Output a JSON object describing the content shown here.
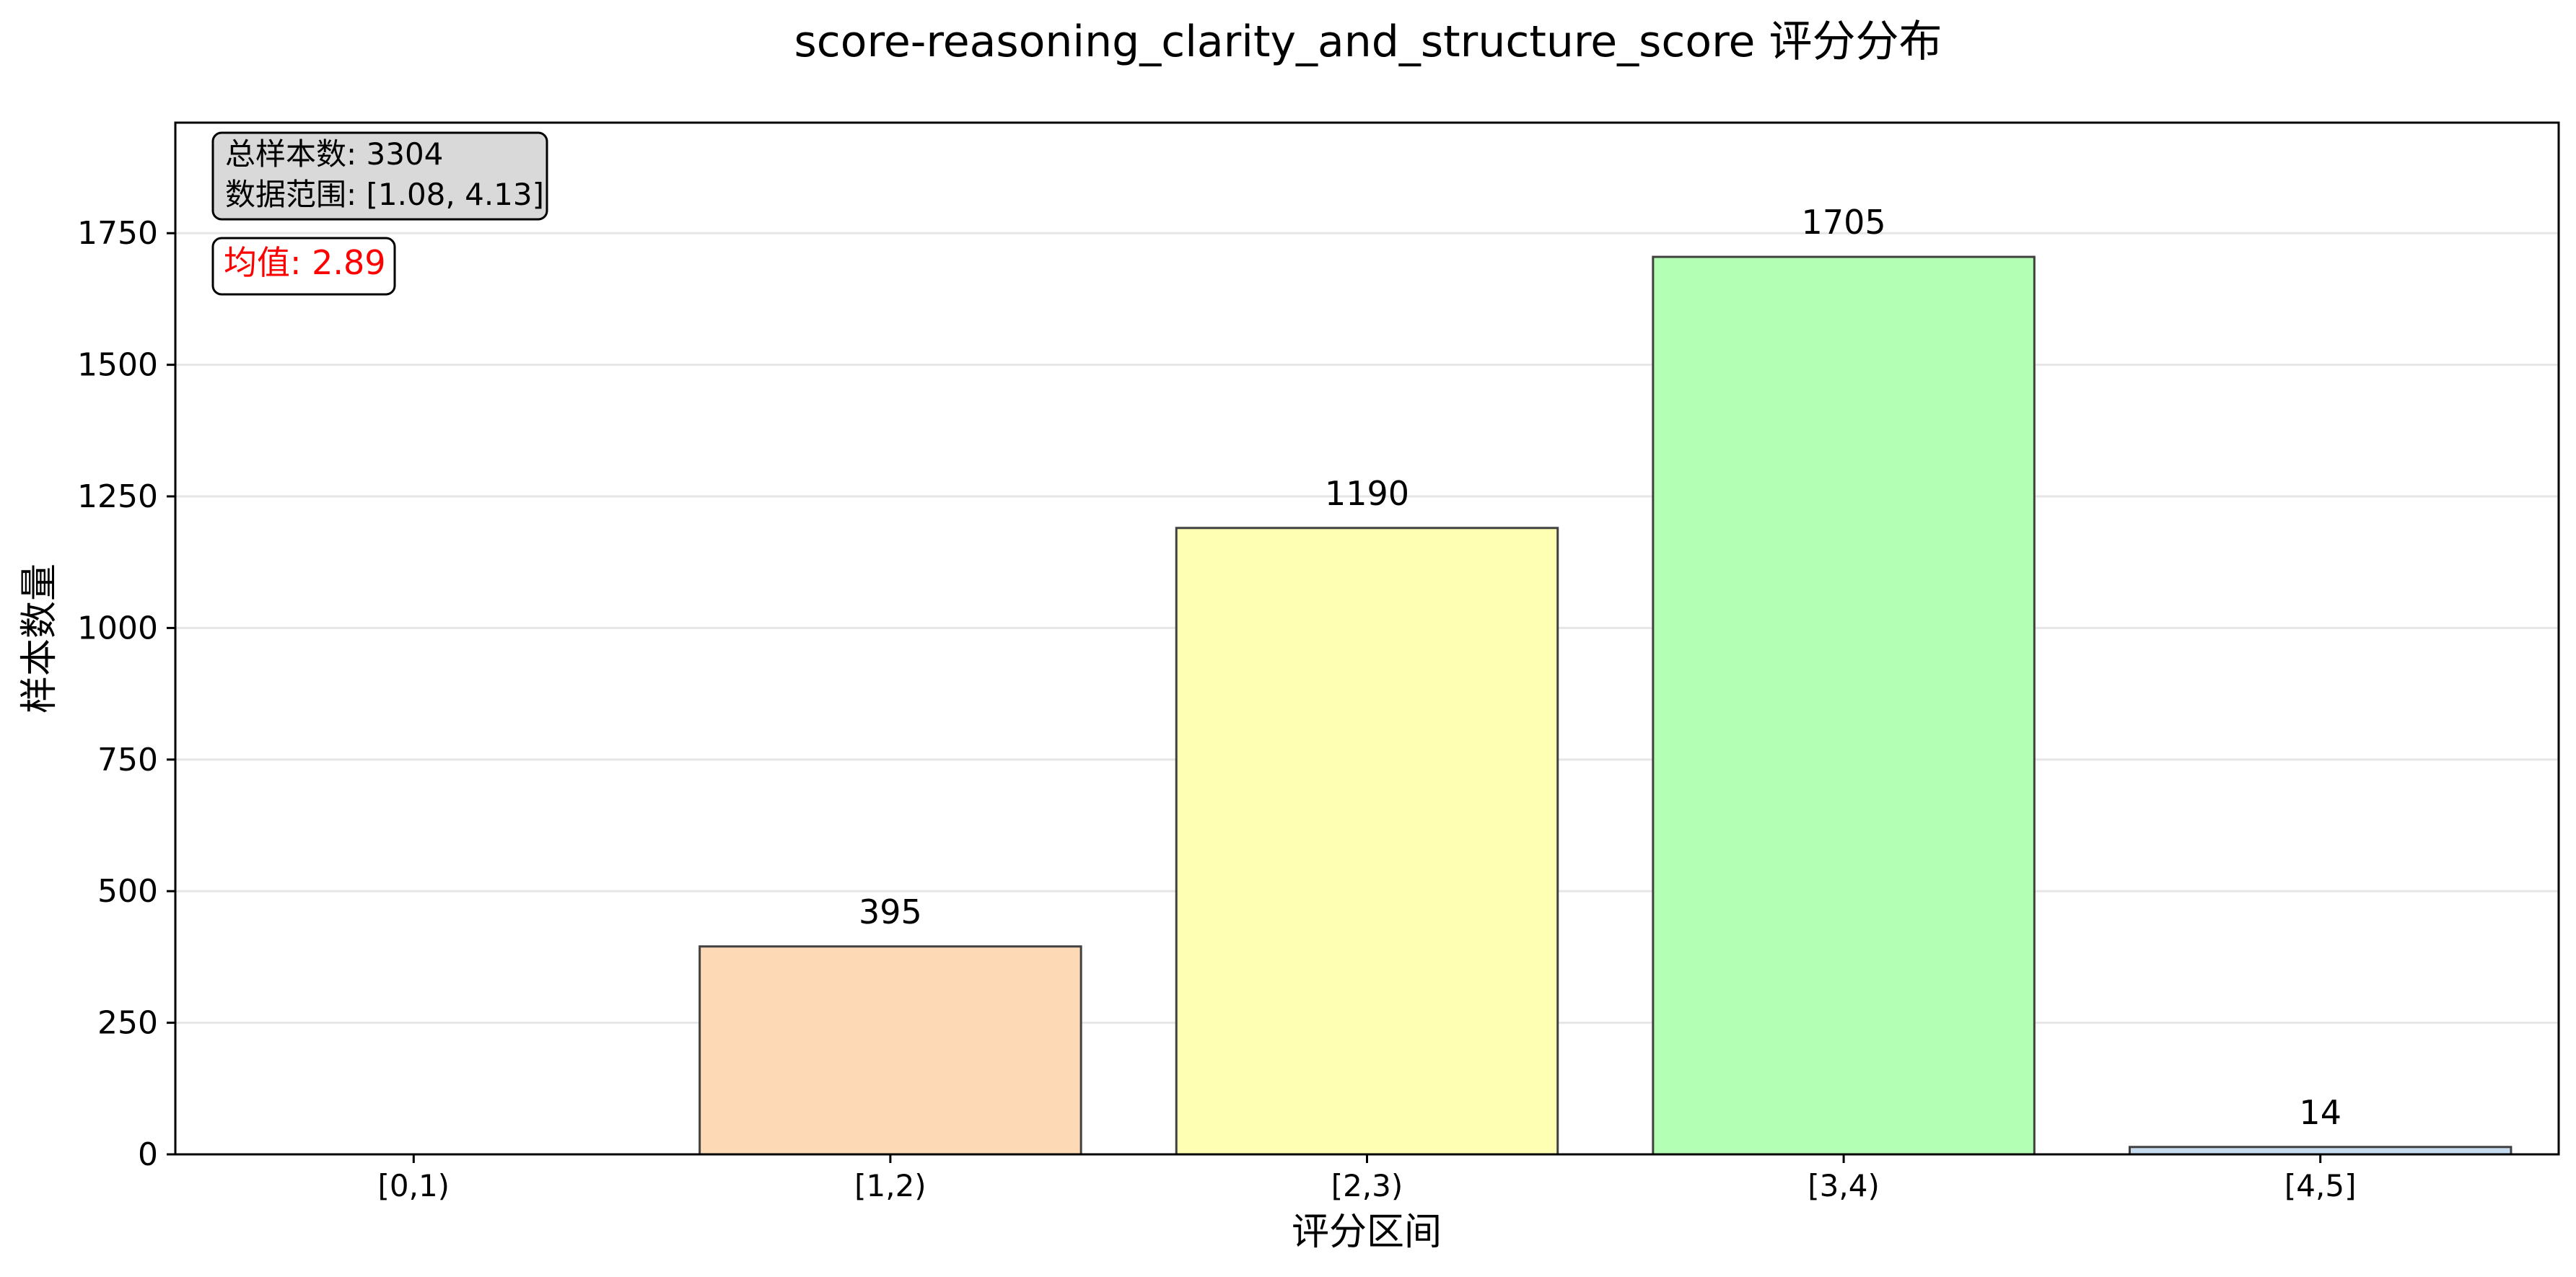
{
  "chart_data": {
    "type": "bar",
    "title": "score-reasoning_clarity_and_structure_score 评分分布",
    "xlabel": "评分区间",
    "ylabel": "样本数量",
    "categories": [
      "[0,1)",
      "[1,2)",
      "[2,3)",
      "[3,4)",
      "[4,5]"
    ],
    "values": [
      0,
      395,
      1190,
      1705,
      14
    ],
    "data_labels": [
      "",
      "395",
      "1190",
      "1705",
      "14"
    ],
    "colors": [
      "#cfe2f3",
      "#fdd9b5",
      "#ffffb3",
      "#b3ffb3",
      "#c6dbef"
    ],
    "ylim": [
      0,
      1960
    ],
    "yticks": [
      0,
      250,
      500,
      750,
      1000,
      1250,
      1500,
      1750
    ],
    "grid": "horizontal",
    "stats_box": {
      "line1": "总样本数: 3304",
      "line2": "数据范围: [1.08, 4.13]"
    },
    "mean_box": {
      "text": "均值: 2.89",
      "color": "#ff0000"
    }
  }
}
